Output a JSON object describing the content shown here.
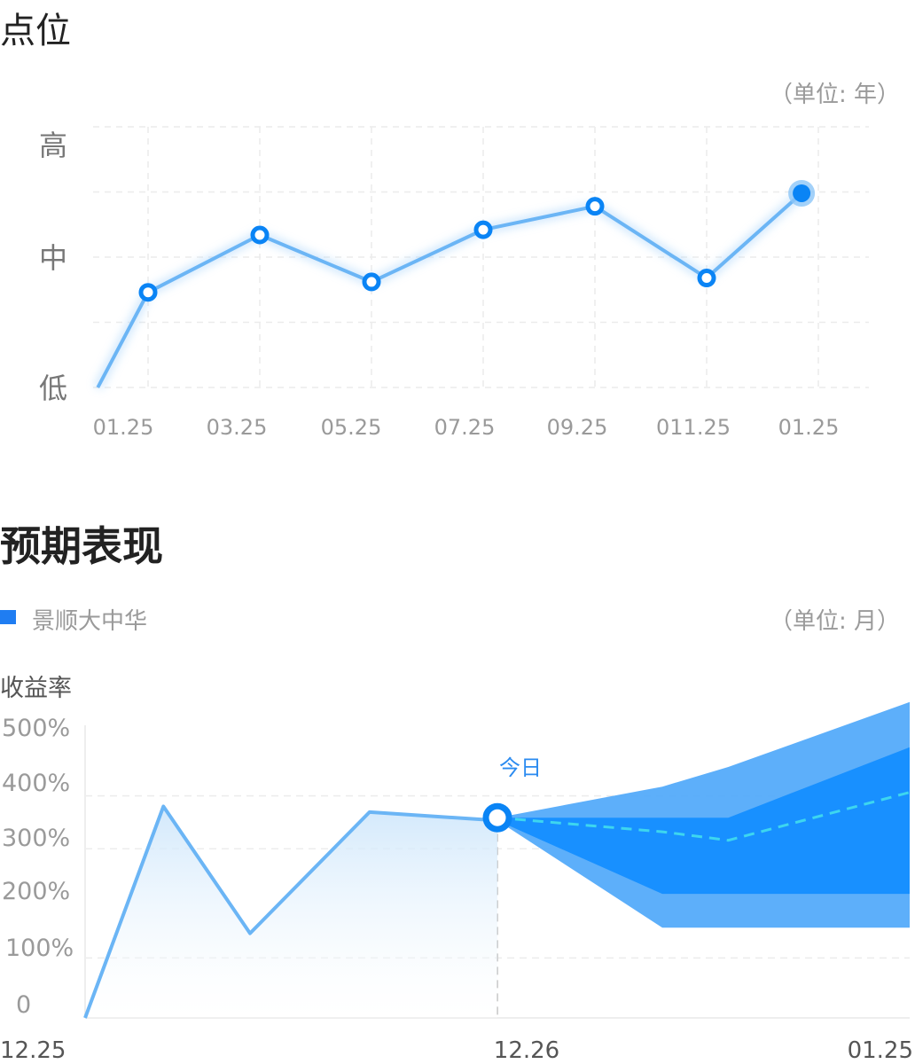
{
  "section1": {
    "title": "点位",
    "unit": "（单位: 年）"
  },
  "section2": {
    "title": "预期表现",
    "unit": "（单位: 月）",
    "legend": "景顺大中华",
    "ylabel": "收益率",
    "today_label": "今日"
  },
  "colors": {
    "line": "#6bb5f5",
    "marker": "#0a84f5",
    "band_outer": "#4fa8fa",
    "band_inner": "#1890ff",
    "median": "#3dd6ef",
    "legend": "#1f7df2"
  },
  "chart_data": [
    {
      "type": "line",
      "title": "点位",
      "ylabel": "",
      "y_categories": [
        "低",
        "中",
        "高"
      ],
      "ylim": [
        0,
        2
      ],
      "x_ticks": [
        "01.25",
        "03.25",
        "05.25",
        "07.25",
        "09.25",
        "011.25",
        "01.25"
      ],
      "series": [
        {
          "x": [
            -0.45,
            0,
            1,
            2,
            3,
            4,
            5,
            5.85
          ],
          "values": [
            0,
            0.73,
            1.17,
            0.81,
            1.21,
            1.39,
            0.84,
            1.49
          ]
        }
      ],
      "grid": true
    },
    {
      "type": "area",
      "title": "预期表现",
      "ylabel": "收益率",
      "y_ticks": [
        "0",
        "100%",
        "200%",
        "300%",
        "400%",
        "500%"
      ],
      "ylim": [
        0,
        500
      ],
      "x_ticks": [
        "12.25",
        "12.26",
        "01.25"
      ],
      "today_x": 0.5,
      "series": [
        {
          "name": "景顺大中华",
          "x": [
            0,
            0.095,
            0.2,
            0.345,
            0.5
          ],
          "values": [
            0,
            375,
            150,
            365,
            350
          ]
        }
      ],
      "forecast": {
        "x": [
          0.5,
          0.7,
          0.78,
          1.0
        ],
        "outer_upper": [
          355,
          410,
          445,
          560
        ],
        "outer_lower": [
          350,
          160,
          160,
          160
        ],
        "inner_upper": [
          355,
          355,
          355,
          480
        ],
        "inner_lower": [
          350,
          220,
          220,
          220
        ],
        "median": [
          355,
          330,
          315,
          400
        ]
      },
      "grid": true
    }
  ]
}
